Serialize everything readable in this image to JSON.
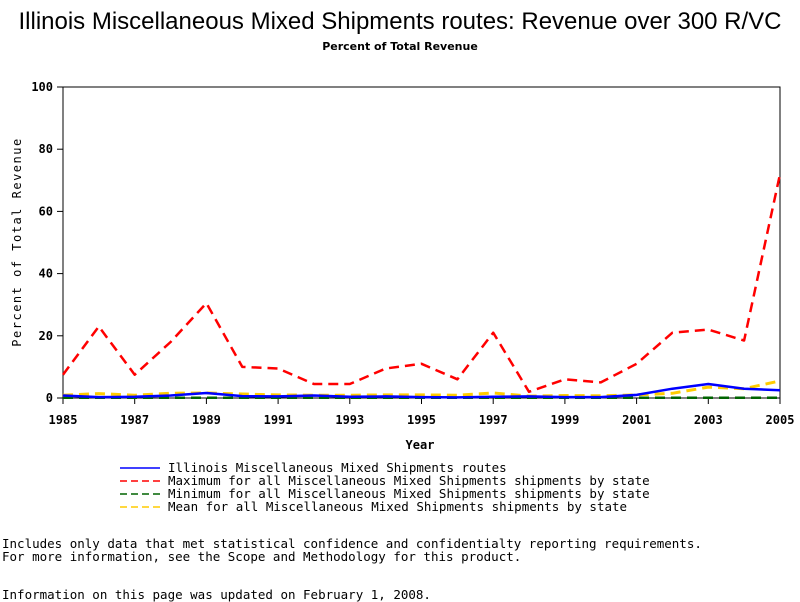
{
  "chart_data": {
    "type": "line",
    "title": "Illinois Miscellaneous Mixed Shipments routes: Revenue over 300 R/VC",
    "subtitle": "Percent of Total Revenue",
    "xlabel": "Year",
    "ylabel": "Percent of Total Revenue",
    "xlim": [
      1985,
      2005
    ],
    "ylim": [
      0,
      100
    ],
    "x_ticks": [
      1985,
      1987,
      1989,
      1991,
      1993,
      1995,
      1997,
      1999,
      2001,
      2003,
      2005
    ],
    "y_ticks": [
      0,
      20,
      40,
      60,
      80,
      100
    ],
    "x": [
      1985,
      1986,
      1987,
      1988,
      1989,
      1990,
      1991,
      1992,
      1993,
      1994,
      1995,
      1996,
      1997,
      1998,
      1999,
      2000,
      2001,
      2002,
      2003,
      2004,
      2005
    ],
    "legend_position": "bottom",
    "series": [
      {
        "name": "Illinois Miscellaneous Mixed Shipments routes",
        "color": "#0000ff",
        "style": "solid",
        "values": [
          0.8,
          0.3,
          0.4,
          0.8,
          1.6,
          0.6,
          0.5,
          0.8,
          0.4,
          0.5,
          0.3,
          0.2,
          0.4,
          0.5,
          0.3,
          0.3,
          1.0,
          3.0,
          4.5,
          3.0,
          2.5
        ]
      },
      {
        "name": "Maximum for all Miscellaneous Mixed Shipments shipments by state",
        "color": "#ff0000",
        "style": "dashed",
        "values": [
          7.5,
          23,
          7.5,
          18,
          30.5,
          10,
          9.5,
          4.5,
          4.5,
          9.5,
          11,
          6,
          21,
          2,
          6,
          5,
          11,
          21,
          22,
          18.5,
          72
        ]
      },
      {
        "name": "Minimum for all Miscellaneous Mixed Shipments shipments by state",
        "color": "#006400",
        "style": "dashed",
        "values": [
          0.1,
          0.1,
          0.1,
          0.1,
          0.1,
          0.1,
          0.1,
          0.1,
          0.1,
          0.1,
          0.1,
          0.1,
          0.1,
          0.1,
          0.1,
          0.1,
          0.1,
          0.1,
          0.1,
          0.1,
          0.1
        ]
      },
      {
        "name": "Mean for all Miscellaneous Mixed Shipments shipments by state",
        "color": "#ffcc00",
        "style": "dashed",
        "values": [
          0.9,
          1.4,
          0.9,
          1.5,
          1.6,
          1.3,
          1.0,
          0.9,
          0.9,
          1.0,
          1.0,
          0.9,
          1.6,
          0.6,
          0.8,
          0.7,
          1.0,
          1.5,
          3.5,
          3.0,
          5.5
        ]
      }
    ]
  },
  "notes": {
    "line1": "Includes only data that met statistical confidence and confidentialty reporting requirements.",
    "line2": "For more information, see the Scope and Methodology for this product.",
    "updated": "Information on this page was updated on February 1, 2008."
  }
}
